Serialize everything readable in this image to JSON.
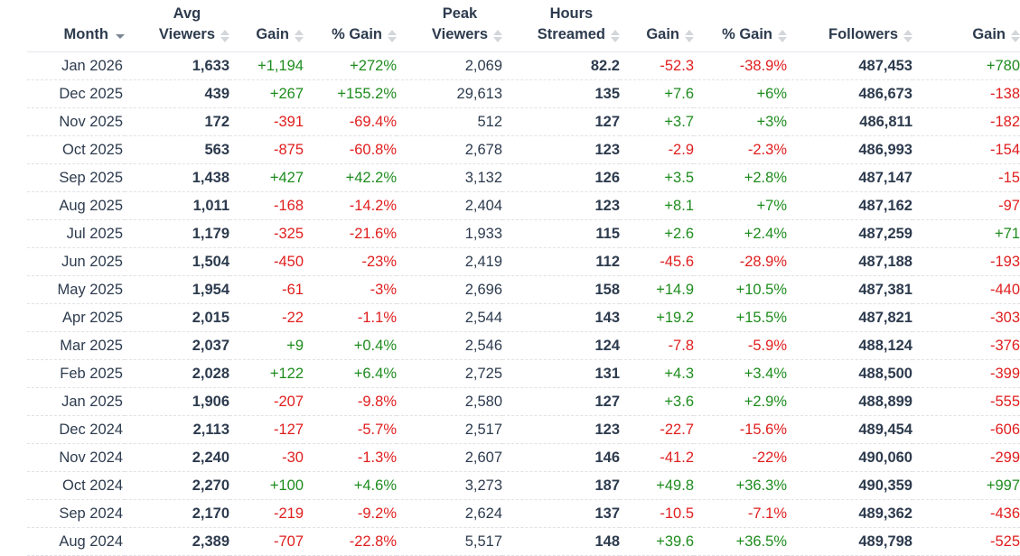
{
  "table": {
    "headers": [
      {
        "line1": "",
        "line2": "Month",
        "sort": "desc"
      },
      {
        "line1": "Avg",
        "line2": "Viewers",
        "sort": "none"
      },
      {
        "line1": "",
        "line2": "Gain",
        "sort": "none"
      },
      {
        "line1": "",
        "line2": "% Gain",
        "sort": "none"
      },
      {
        "line1": "Peak",
        "line2": "Viewers",
        "sort": "none"
      },
      {
        "line1": "Hours",
        "line2": "Streamed",
        "sort": "none"
      },
      {
        "line1": "",
        "line2": "Gain",
        "sort": "none"
      },
      {
        "line1": "",
        "line2": "% Gain",
        "sort": "none"
      },
      {
        "line1": "",
        "line2": "Followers",
        "sort": "none"
      },
      {
        "line1": "",
        "line2": "Gain",
        "sort": "none"
      }
    ],
    "rows": [
      [
        "Jan 2026",
        "1,633",
        "+1,194",
        "+272%",
        "2,069",
        "82.2",
        "-52.3",
        "-38.9%",
        "487,453",
        "+780"
      ],
      [
        "Dec 2025",
        "439",
        "+267",
        "+155.2%",
        "29,613",
        "135",
        "+7.6",
        "+6%",
        "486,673",
        "-138"
      ],
      [
        "Nov 2025",
        "172",
        "-391",
        "-69.4%",
        "512",
        "127",
        "+3.7",
        "+3%",
        "486,811",
        "-182"
      ],
      [
        "Oct 2025",
        "563",
        "-875",
        "-60.8%",
        "2,678",
        "123",
        "-2.9",
        "-2.3%",
        "486,993",
        "-154"
      ],
      [
        "Sep 2025",
        "1,438",
        "+427",
        "+42.2%",
        "3,132",
        "126",
        "+3.5",
        "+2.8%",
        "487,147",
        "-15"
      ],
      [
        "Aug 2025",
        "1,011",
        "-168",
        "-14.2%",
        "2,404",
        "123",
        "+8.1",
        "+7%",
        "487,162",
        "-97"
      ],
      [
        "Jul 2025",
        "1,179",
        "-325",
        "-21.6%",
        "1,933",
        "115",
        "+2.6",
        "+2.4%",
        "487,259",
        "+71"
      ],
      [
        "Jun 2025",
        "1,504",
        "-450",
        "-23%",
        "2,419",
        "112",
        "-45.6",
        "-28.9%",
        "487,188",
        "-193"
      ],
      [
        "May 2025",
        "1,954",
        "-61",
        "-3%",
        "2,696",
        "158",
        "+14.9",
        "+10.5%",
        "487,381",
        "-440"
      ],
      [
        "Apr 2025",
        "2,015",
        "-22",
        "-1.1%",
        "2,544",
        "143",
        "+19.2",
        "+15.5%",
        "487,821",
        "-303"
      ],
      [
        "Mar 2025",
        "2,037",
        "+9",
        "+0.4%",
        "2,546",
        "124",
        "-7.8",
        "-5.9%",
        "488,124",
        "-376"
      ],
      [
        "Feb 2025",
        "2,028",
        "+122",
        "+6.4%",
        "2,725",
        "131",
        "+4.3",
        "+3.4%",
        "488,500",
        "-399"
      ],
      [
        "Jan 2025",
        "1,906",
        "-207",
        "-9.8%",
        "2,580",
        "127",
        "+3.6",
        "+2.9%",
        "488,899",
        "-555"
      ],
      [
        "Dec 2024",
        "2,113",
        "-127",
        "-5.7%",
        "2,517",
        "123",
        "-22.7",
        "-15.6%",
        "489,454",
        "-606"
      ],
      [
        "Nov 2024",
        "2,240",
        "-30",
        "-1.3%",
        "2,607",
        "146",
        "-41.2",
        "-22%",
        "490,060",
        "-299"
      ],
      [
        "Oct 2024",
        "2,270",
        "+100",
        "+4.6%",
        "3,273",
        "187",
        "+49.8",
        "+36.3%",
        "490,359",
        "+997"
      ],
      [
        "Sep 2024",
        "2,170",
        "-219",
        "-9.2%",
        "2,624",
        "137",
        "-10.5",
        "-7.1%",
        "489,362",
        "-436"
      ],
      [
        "Aug 2024",
        "2,389",
        "-707",
        "-22.8%",
        "5,517",
        "148",
        "+39.6",
        "+36.5%",
        "489,798",
        "-525"
      ]
    ]
  },
  "colors": {
    "positive": "#1e8c1e",
    "negative": "#e01e1e",
    "text": "#2d3b4e"
  }
}
